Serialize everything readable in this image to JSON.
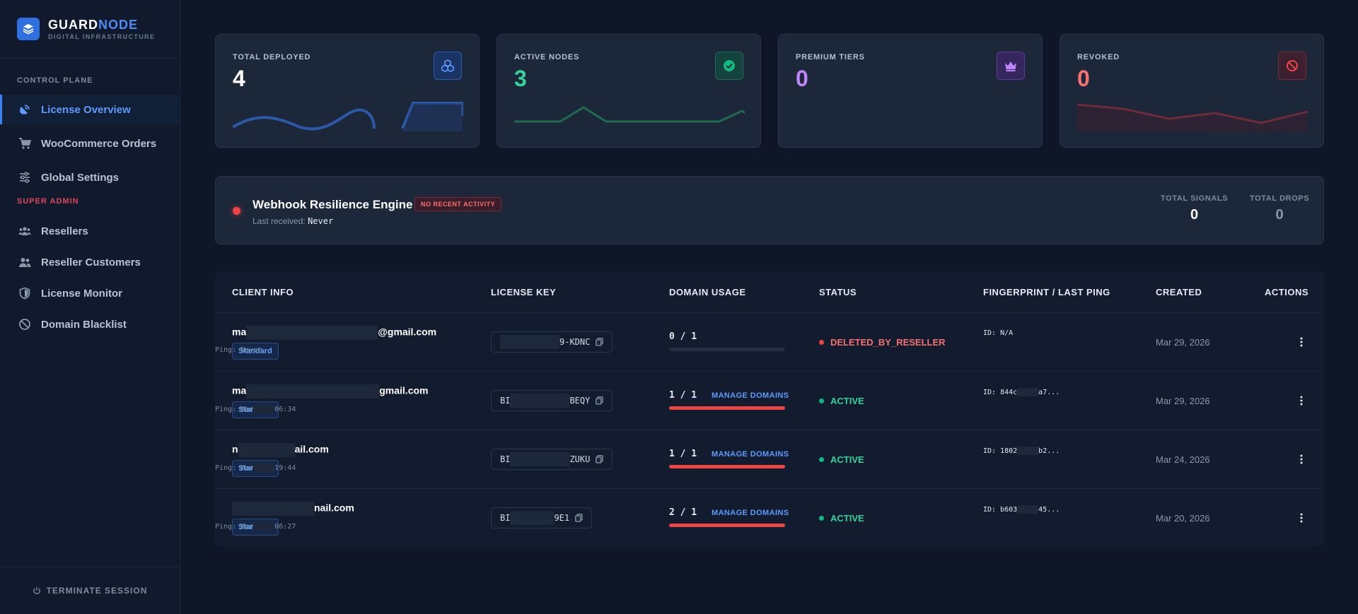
{
  "brand": {
    "name_a": "GUARD",
    "name_b": "NODE",
    "subtitle": "DIGITAL INFRASTRUCTURE"
  },
  "sidebar": {
    "section_control": "CONTROL PLANE",
    "section_admin": "SUPER ADMIN",
    "items": [
      {
        "label": "License Overview",
        "icon": "satellite-dish-icon",
        "active": true
      },
      {
        "label": "WooCommerce Orders",
        "icon": "shopping-cart-icon"
      },
      {
        "label": "Global Settings",
        "icon": "sliders-icon"
      },
      {
        "label": "Resellers",
        "icon": "users-icon"
      },
      {
        "label": "Reseller Customers",
        "icon": "user-group-icon"
      },
      {
        "label": "License Monitor",
        "icon": "shield-icon"
      },
      {
        "label": "Domain Blacklist",
        "icon": "ban-icon"
      }
    ],
    "footer": "TERMINATE SESSION"
  },
  "stats": [
    {
      "label": "TOTAL DEPLOYED",
      "value": "4",
      "color": "#ffffff",
      "icon": "cubes-icon",
      "accent": "#3b82f6"
    },
    {
      "label": "ACTIVE NODES",
      "value": "3",
      "color": "#34d399",
      "icon": "check-circle-icon",
      "accent": "#10b981"
    },
    {
      "label": "PREMIUM TIERS",
      "value": "0",
      "color": "#c084fc",
      "icon": "crown-icon",
      "accent": "#a855f7"
    },
    {
      "label": "REVOKED",
      "value": "0",
      "color": "#f87171",
      "icon": "ban-icon",
      "accent": "#ef4444"
    }
  ],
  "webhook": {
    "title": "Webhook Resilience Engine",
    "badge": "NO RECENT ACTIVITY",
    "last_label": "Last received:",
    "last_value": "Never",
    "signals_label": "TOTAL SIGNALS",
    "signals_value": "0",
    "drops_label": "TOTAL DROPS",
    "drops_value": "0"
  },
  "table": {
    "headers": [
      "CLIENT INFO",
      "LICENSE KEY",
      "DOMAIN USAGE",
      "STATUS",
      "FINGERPRINT / LAST PING",
      "CREATED",
      "ACTIONS"
    ],
    "manage_label": "MANAGE DOMAINS",
    "rows": [
      {
        "email_prefix": "ma",
        "email_suffix": "@gmail.com",
        "tier": "Standard",
        "key_prefix": "",
        "key_suffix": "9-KDNC",
        "domains": "0 / 1",
        "usage": 0,
        "manage": false,
        "status": "DELETED_BY_RESELLER",
        "status_color": "#f87171",
        "dot_color": "#ef4444",
        "fp_id": "ID: N/A",
        "fp_ping": "Ping: Never",
        "created": "Mar 29, 2026"
      },
      {
        "email_prefix": "ma",
        "email_suffix": "gmail.com",
        "tier": "Standard",
        "key_prefix": "BI",
        "key_suffix": "BEQY",
        "domains": "1 / 1",
        "usage": 1,
        "manage": true,
        "status": "ACTIVE",
        "status_color": "#34d399",
        "dot_color": "#10b981",
        "fp_id": "ID: 844c",
        "fp_id_tail": "a7...",
        "fp_ping": "Ping: Mar",
        "fp_ping_tail": "06:34",
        "created": "Mar 29, 2026"
      },
      {
        "email_prefix": "n",
        "email_suffix": "ail.com",
        "tier": "Standard",
        "key_prefix": "BI",
        "key_suffix": "ZUKU",
        "domains": "1 / 1",
        "usage": 1,
        "manage": true,
        "status": "ACTIVE",
        "status_color": "#34d399",
        "dot_color": "#10b981",
        "fp_id": "ID: 1802",
        "fp_id_tail": "b2...",
        "fp_ping": "Ping: Mar",
        "fp_ping_tail": "19:44",
        "created": "Mar 24, 2026"
      },
      {
        "email_prefix": "",
        "email_suffix": "nail.com",
        "tier": "Standard",
        "key_prefix": "BI",
        "key_suffix": "9E1",
        "domains": "2 / 1",
        "usage": 1,
        "manage": true,
        "status": "ACTIVE",
        "status_color": "#34d399",
        "dot_color": "#10b981",
        "fp_id": "ID: b603",
        "fp_id_tail": "45...",
        "fp_ping": "Ping: Mar",
        "fp_ping_tail": "06:27",
        "created": "Mar 20, 2026"
      }
    ]
  }
}
